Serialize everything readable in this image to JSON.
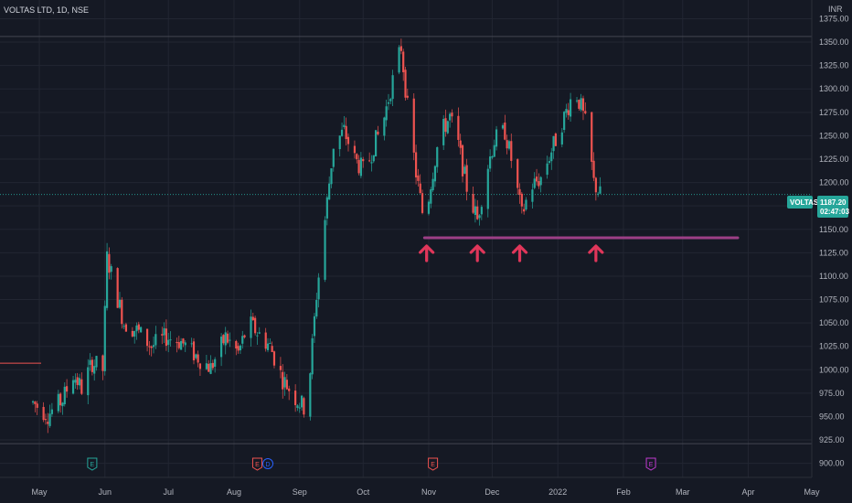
{
  "header": {
    "symbol_title": "VOLTAS LTD, 1D, NSE",
    "currency": "INR"
  },
  "price_badge": {
    "symbol": "VOLTAS",
    "price": "1187.20",
    "countdown": "02:47:03"
  },
  "colors": {
    "background": "#151924",
    "grid": "#222632",
    "up": "#26a69a",
    "down": "#ef5350",
    "support_line": "#9c3f86",
    "arrow": "#e0365a",
    "axis_text": "#b2b5be",
    "earnings": "#26a69a",
    "earnings_red": "#ef5350",
    "earnings_purple": "#c13bd1",
    "dividend": "#2962ff"
  },
  "events": [
    {
      "label": "E",
      "date": "2021-05-26",
      "kind": "earnings_past"
    },
    {
      "label": "E",
      "date": "2021-08-12",
      "kind": "earnings_red"
    },
    {
      "label": "D",
      "date": "2021-08-17",
      "kind": "dividend"
    },
    {
      "label": "E",
      "date": "2021-11-03",
      "kind": "earnings_red"
    },
    {
      "label": "E",
      "date": "2022-02-14",
      "kind": "earnings_future"
    }
  ],
  "chart_data": {
    "type": "candlestick",
    "title": "VOLTAS LTD, 1D, NSE",
    "x_ticks": [
      "May",
      "Jun",
      "Jul",
      "Aug",
      "Sep",
      "Oct",
      "Nov",
      "Dec",
      "2022",
      "Feb",
      "Mar",
      "Apr",
      "May"
    ],
    "y_ticks": [
      "1375.00",
      "1350.00",
      "1325.00",
      "1300.00",
      "1275.00",
      "1250.00",
      "1225.00",
      "1200.00",
      "1175.00",
      "1150.00",
      "1125.00",
      "1100.00",
      "1075.00",
      "1050.00",
      "1025.00",
      "1000.00",
      "975.00",
      "950.00",
      "925.00",
      "900.00"
    ],
    "ylim": [
      885,
      1395
    ],
    "last_price": 1187.2,
    "support_level": 1141,
    "support_range": [
      "2021-10-30",
      "2022-03-27"
    ],
    "horizontal_marks": [
      {
        "value": 1356,
        "color": "#434651"
      },
      {
        "value": 1007,
        "color": "#ef5350"
      },
      {
        "value": 921,
        "color": "#434651"
      }
    ],
    "arrows": [
      "2021-10-31",
      "2021-11-24",
      "2021-12-14",
      "2022-01-19"
    ],
    "ohlc_anchor_dates": {
      "start": "2021-04-28",
      "end": "2022-01-21"
    },
    "price_path": [
      [
        "2021-04-28",
        965
      ],
      [
        "2021-05-05",
        952
      ],
      [
        "2021-05-12",
        968
      ],
      [
        "2021-05-17",
        995
      ],
      [
        "2021-05-21",
        980
      ],
      [
        "2021-05-26",
        1008
      ],
      [
        "2021-05-31",
        1000
      ],
      [
        "2021-06-02",
        1120
      ],
      [
        "2021-06-06",
        1085
      ],
      [
        "2021-06-10",
        1050
      ],
      [
        "2021-06-16",
        1042
      ],
      [
        "2021-06-23",
        1025
      ],
      [
        "2021-06-30",
        1035
      ],
      [
        "2021-07-07",
        1030
      ],
      [
        "2021-07-14",
        1015
      ],
      [
        "2021-07-21",
        1002
      ],
      [
        "2021-07-28",
        1035
      ],
      [
        "2021-08-03",
        1018
      ],
      [
        "2021-08-08",
        1050
      ],
      [
        "2021-08-12",
        1040
      ],
      [
        "2021-08-18",
        1025
      ],
      [
        "2021-08-24",
        990
      ],
      [
        "2021-08-30",
        970
      ],
      [
        "2021-09-03",
        960
      ],
      [
        "2021-09-06",
        1000
      ],
      [
        "2021-09-09",
        1080
      ],
      [
        "2021-09-13",
        1160
      ],
      [
        "2021-09-17",
        1240
      ],
      [
        "2021-09-22",
        1255
      ],
      [
        "2021-09-27",
        1225
      ],
      [
        "2021-10-02",
        1210
      ],
      [
        "2021-10-06",
        1240
      ],
      [
        "2021-10-10",
        1260
      ],
      [
        "2021-10-14",
        1300
      ],
      [
        "2021-10-19",
        1345
      ],
      [
        "2021-10-22",
        1280
      ],
      [
        "2021-10-26",
        1210
      ],
      [
        "2021-10-30",
        1155
      ],
      [
        "2021-11-02",
        1200
      ],
      [
        "2021-11-06",
        1250
      ],
      [
        "2021-11-11",
        1270
      ],
      [
        "2021-11-15",
        1240
      ],
      [
        "2021-11-19",
        1195
      ],
      [
        "2021-11-24",
        1160
      ],
      [
        "2021-11-28",
        1210
      ],
      [
        "2021-12-02",
        1245
      ],
      [
        "2021-12-07",
        1255
      ],
      [
        "2021-12-11",
        1215
      ],
      [
        "2021-12-15",
        1165
      ],
      [
        "2021-12-19",
        1195
      ],
      [
        "2021-12-24",
        1205
      ],
      [
        "2021-12-30",
        1240
      ],
      [
        "2022-01-04",
        1270
      ],
      [
        "2022-01-09",
        1300
      ],
      [
        "2022-01-12",
        1280
      ],
      [
        "2022-01-15",
        1255
      ],
      [
        "2022-01-18",
        1200
      ],
      [
        "2022-01-21",
        1187
      ]
    ]
  }
}
